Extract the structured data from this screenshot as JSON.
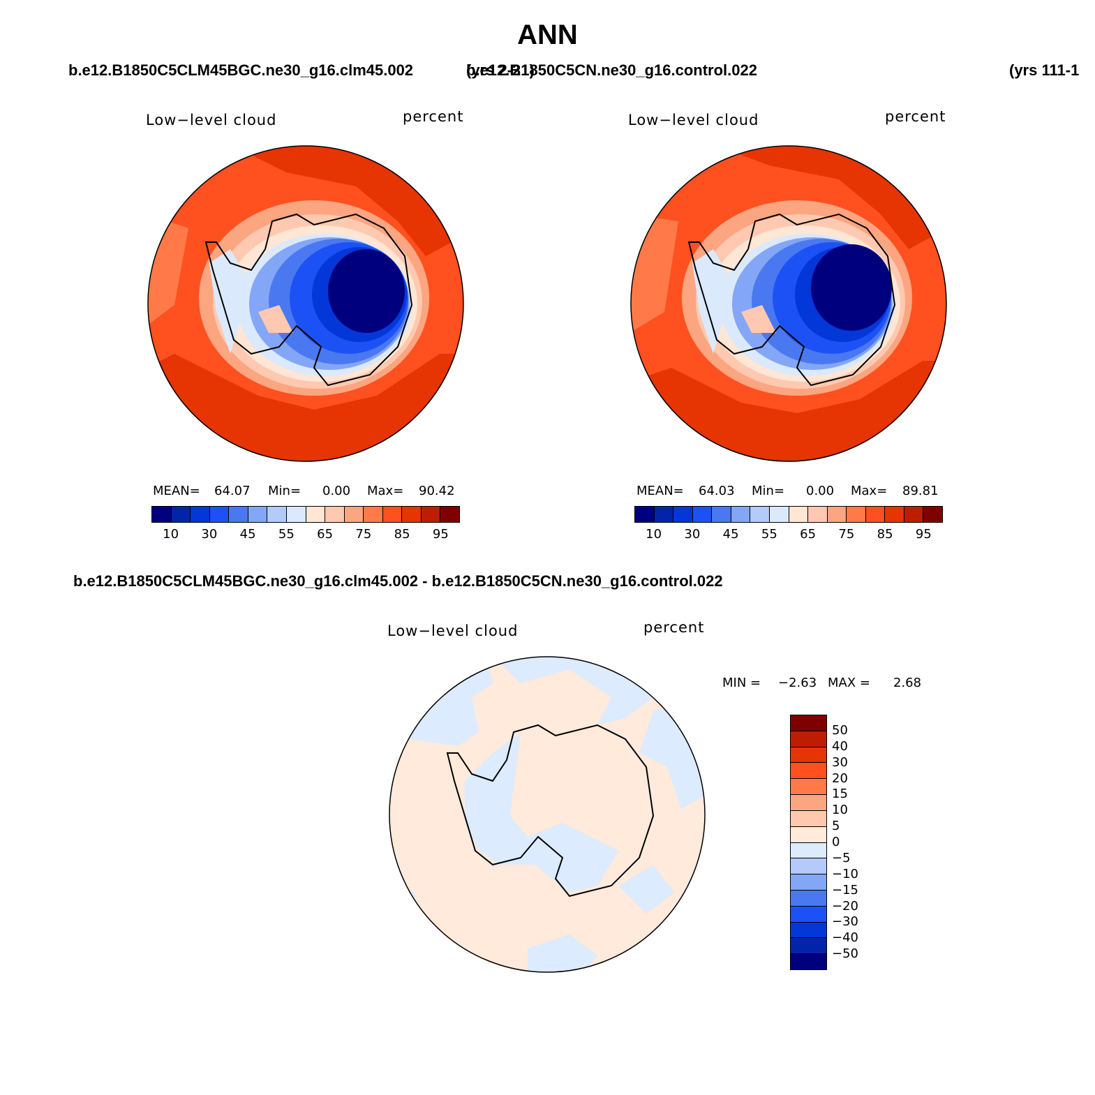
{
  "page_title": "ANN",
  "cases": {
    "test_name": "b.e12.B1850C5CLM45BGC.ne30_g16.clm45.002",
    "test_years": "(yrs 2-21)",
    "control_name": "b.e12.B1850C5CN.ne30_g16.control.022",
    "control_years": "(yrs 111-1"
  },
  "panels": [
    {
      "variable": "Low−level cloud",
      "units": "percent",
      "mean_label": "MEAN=",
      "mean": "64.07",
      "min_label": "Min=",
      "min": "0.00",
      "max_label": "Max=",
      "max": "90.42"
    },
    {
      "variable": "Low−level cloud",
      "units": "percent",
      "mean_label": "MEAN=",
      "mean": "64.03",
      "min_label": "Min=",
      "min": "0.00",
      "max_label": "Max=",
      "max": "89.81"
    }
  ],
  "colorbar": {
    "colors": [
      "#00007f",
      "#0224a9",
      "#0337d8",
      "#1c52f5",
      "#4a78f0",
      "#84a6f6",
      "#b3cafa",
      "#dae9fc",
      "#ffe6d5",
      "#fec9b0",
      "#fca581",
      "#ff7a48",
      "#ff5020",
      "#e63402",
      "#bd1e00",
      "#7f0000"
    ],
    "ticks": [
      "10",
      "30",
      "45",
      "55",
      "65",
      "75",
      "85",
      "95"
    ]
  },
  "difference": {
    "title": "b.e12.B1850C5CLM45BGC.ne30_g16.clm45.002 - b.e12.B1850C5CN.ne30_g16.control.022",
    "variable": "Low−level cloud",
    "units": "percent",
    "min_label": "MIN =",
    "min": "−2.63",
    "max_label": "MAX =",
    "max": "2.68",
    "colorbar": {
      "colors": [
        "#7f0000",
        "#bd1e00",
        "#e63402",
        "#ff5020",
        "#ff7a48",
        "#fca581",
        "#fec9b0",
        "#ffeadb",
        "#dcebfd",
        "#b3cafa",
        "#84a6f6",
        "#4a78f0",
        "#1c52f5",
        "#0337d8",
        "#0224a9",
        "#00007f"
      ],
      "ticks": [
        "50",
        "40",
        "30",
        "20",
        "15",
        "10",
        "5",
        "0",
        "−5",
        "−10",
        "−15",
        "−20",
        "−30",
        "−40",
        "−50"
      ]
    }
  }
}
